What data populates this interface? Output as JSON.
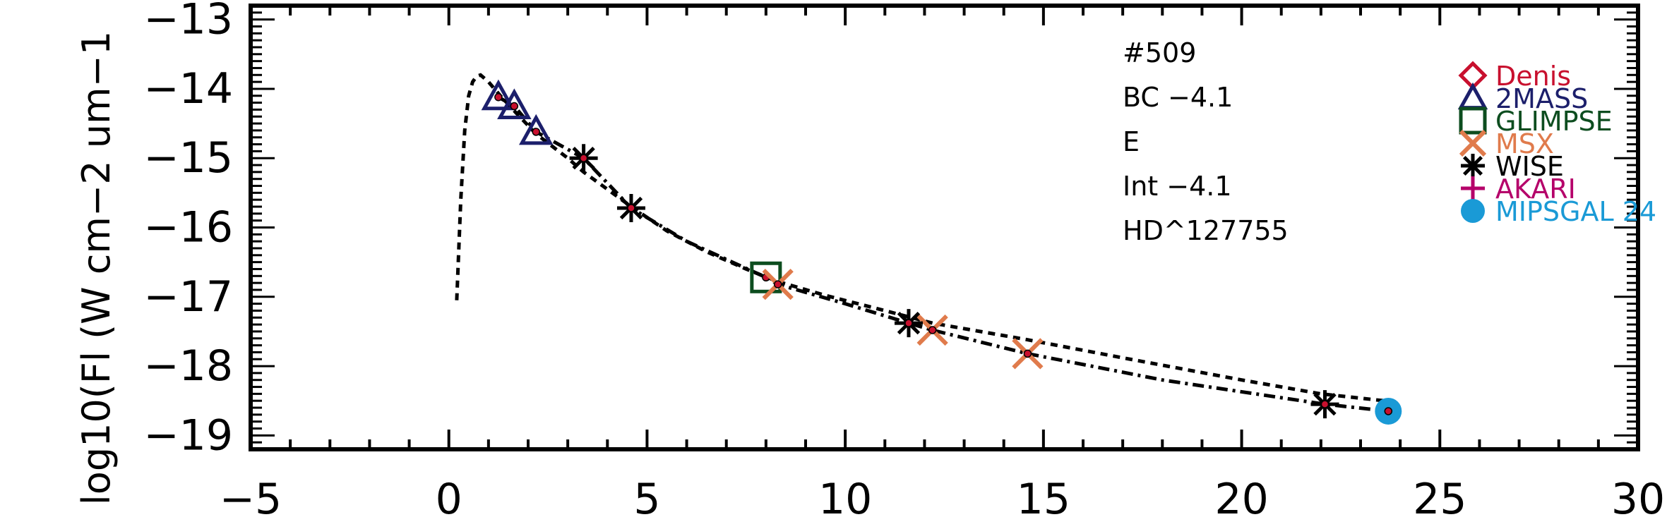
{
  "chart_data": {
    "type": "scatter",
    "title": "",
    "xlabel": "",
    "ylabel": "log10(Fl (W cm−2 um−1",
    "xlim": [
      -5,
      30
    ],
    "ylim": [
      -19.2,
      -12.8
    ],
    "x_ticks": [
      -5,
      0,
      5,
      10,
      15,
      20,
      25,
      30
    ],
    "x_tick_labels": [
      "−5",
      "0",
      "5",
      "10",
      "15",
      "20",
      "25",
      "30"
    ],
    "y_ticks": [
      -13,
      -14,
      -15,
      -16,
      -17,
      -18,
      -19
    ],
    "y_tick_labels": [
      "−13",
      "−14",
      "−15",
      "−16",
      "−17",
      "−18",
      "−19"
    ],
    "grid": false,
    "legend_placement": "top-right",
    "annotations": [
      "#509",
      "BC −4.1",
      "E",
      "Int −4.1",
      "HD^127755"
    ],
    "model_curve_dashed": {
      "x": [
        0.2,
        0.3,
        0.4,
        0.5,
        0.6,
        0.7,
        0.8,
        1.0,
        1.3,
        1.7,
        2.2,
        3.0,
        3.4,
        4.0,
        4.6,
        5.5,
        6.5,
        7.5,
        8.3,
        9.5,
        11.0,
        12.2,
        14.6,
        17.0,
        20.0,
        22.0,
        23.6
      ],
      "y": [
        -17.05,
        -15.6,
        -14.6,
        -14.1,
        -13.9,
        -13.82,
        -13.8,
        -13.9,
        -14.1,
        -14.35,
        -14.65,
        -15.0,
        -15.2,
        -15.45,
        -15.7,
        -16.05,
        -16.35,
        -16.6,
        -16.78,
        -16.98,
        -17.2,
        -17.38,
        -17.62,
        -17.88,
        -18.2,
        -18.4,
        -18.5
      ]
    },
    "model_curve_dashdot": {
      "x": [
        1.25,
        1.65,
        2.2,
        3.4,
        4.6,
        6.0,
        8.0,
        8.3,
        10.0,
        11.6,
        12.2,
        14.6,
        18.0,
        22.1,
        23.7
      ],
      "y": [
        -14.12,
        -14.25,
        -14.62,
        -15.0,
        -15.72,
        -16.2,
        -16.72,
        -16.82,
        -17.1,
        -17.38,
        -17.48,
        -17.82,
        -18.2,
        -18.55,
        -18.65
      ]
    },
    "series": [
      {
        "name": "Denis",
        "color": "#c8102e",
        "marker": "diamond",
        "x": [],
        "y": []
      },
      {
        "name": "2MASS",
        "color": "#1c1f6b",
        "marker": "triangle",
        "x": [
          1.25,
          1.65,
          2.2
        ],
        "y": [
          -14.12,
          -14.25,
          -14.62
        ]
      },
      {
        "name": "GLIMPSE",
        "color": "#0d4d1f",
        "marker": "square",
        "x": [
          8.0
        ],
        "y": [
          -16.72
        ]
      },
      {
        "name": "MSX",
        "color": "#e07b4c",
        "marker": "x",
        "x": [
          8.3,
          12.2,
          14.6
        ],
        "y": [
          -16.82,
          -17.48,
          -17.82
        ]
      },
      {
        "name": "WISE",
        "color": "#000000",
        "marker": "asterisk",
        "x": [
          3.4,
          4.6,
          11.6,
          22.1
        ],
        "y": [
          -15.0,
          -15.72,
          -17.38,
          -18.55
        ]
      },
      {
        "name": "AKARI",
        "color": "#b5006a",
        "marker": "plus",
        "x": [],
        "y": []
      },
      {
        "name": "MIPSGAL 24",
        "color": "#1a9ad6",
        "marker": "circle",
        "x": [
          23.7
        ],
        "y": [
          -18.65
        ]
      }
    ]
  }
}
